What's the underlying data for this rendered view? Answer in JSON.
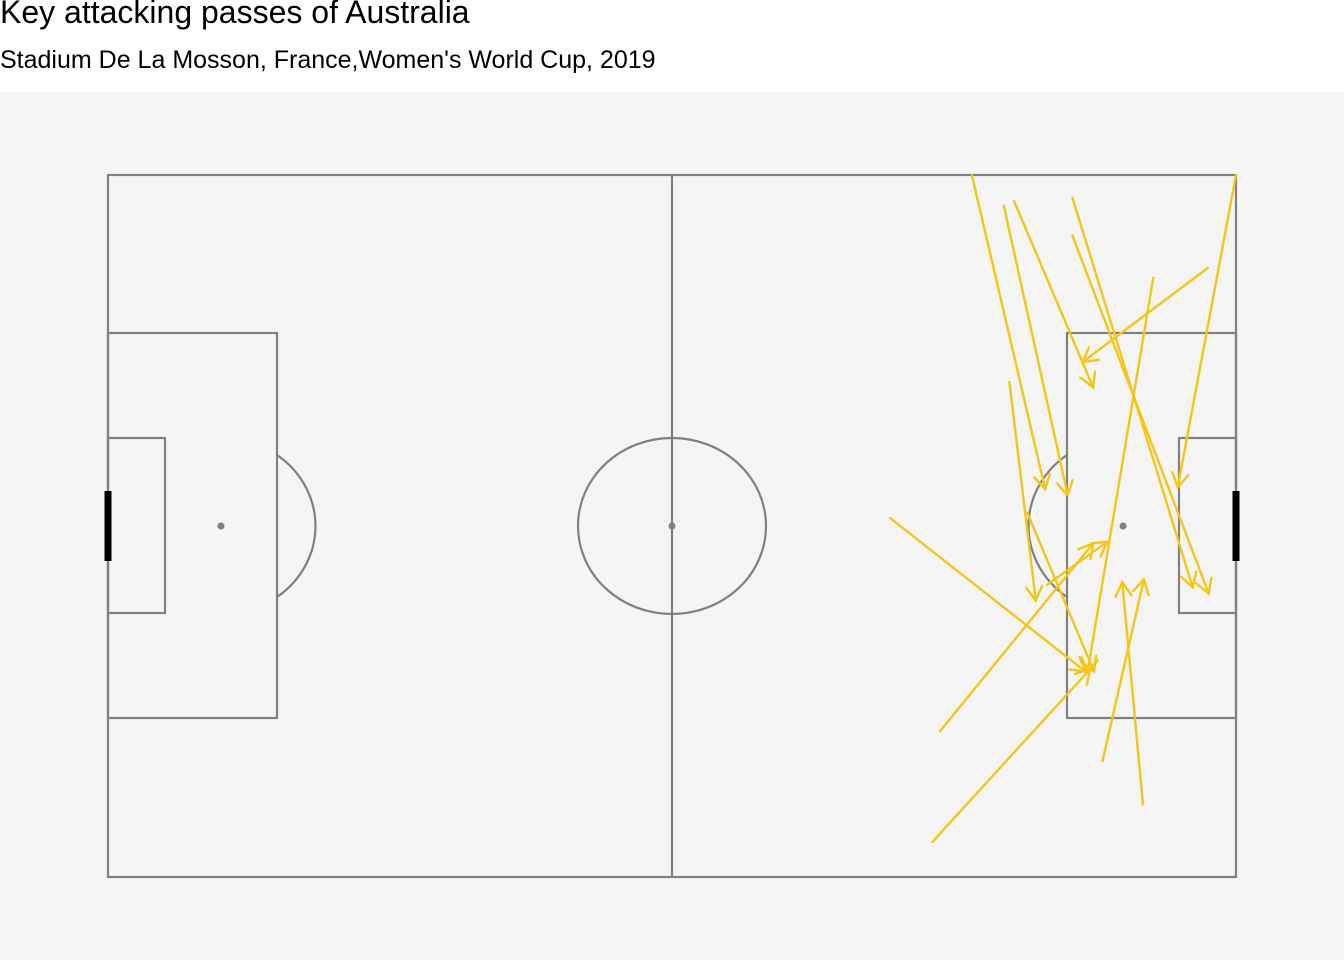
{
  "chart_data": {
    "type": "pitch-pass-map",
    "title": "Key attacking passes of Australia",
    "subtitle": "Stadium De La Mosson, France,Women's World Cup, 2019",
    "xlim": [
      0,
      120
    ],
    "ylim": [
      0,
      80
    ],
    "colors": {
      "panel_background": "#f5f5f5",
      "pitch_lines": "#808080",
      "goal": "#000000",
      "pass_arrow": "#f5c518"
    },
    "passes": [
      {
        "x": 102.6,
        "y": 2.6,
        "end_x": 115.4,
        "end_y": 47.0
      },
      {
        "x": 97.8,
        "y": 38.5,
        "end_x": 104.9,
        "end_y": 56.6
      },
      {
        "x": 91.9,
        "y": 0.0,
        "end_x": 99.7,
        "end_y": 35.8
      },
      {
        "x": 102.6,
        "y": 6.9,
        "end_x": 117.1,
        "end_y": 47.7
      },
      {
        "x": 117.0,
        "y": 10.6,
        "end_x": 103.7,
        "end_y": 21.3
      },
      {
        "x": 95.3,
        "y": 3.5,
        "end_x": 102.1,
        "end_y": 36.5
      },
      {
        "x": 111.2,
        "y": 11.7,
        "end_x": 104.2,
        "end_y": 56.7
      },
      {
        "x": 120.0,
        "y": 0.0,
        "end_x": 113.8,
        "end_y": 35.6
      },
      {
        "x": 95.9,
        "y": 23.6,
        "end_x": 98.7,
        "end_y": 48.5
      },
      {
        "x": 83.2,
        "y": 39.1,
        "end_x": 104.0,
        "end_y": 56.6
      },
      {
        "x": 88.5,
        "y": 63.4,
        "end_x": 104.8,
        "end_y": 42.0
      },
      {
        "x": 87.7,
        "y": 76.0,
        "end_x": 104.5,
        "end_y": 56.3
      },
      {
        "x": 105.8,
        "y": 66.8,
        "end_x": 110.2,
        "end_y": 46.1
      },
      {
        "x": 110.1,
        "y": 71.7,
        "end_x": 107.9,
        "end_y": 46.4
      },
      {
        "x": 99.9,
        "y": 46.7,
        "end_x": 106.3,
        "end_y": 41.8
      },
      {
        "x": 96.4,
        "y": 3.0,
        "end_x": 104.8,
        "end_y": 24.2
      }
    ]
  }
}
